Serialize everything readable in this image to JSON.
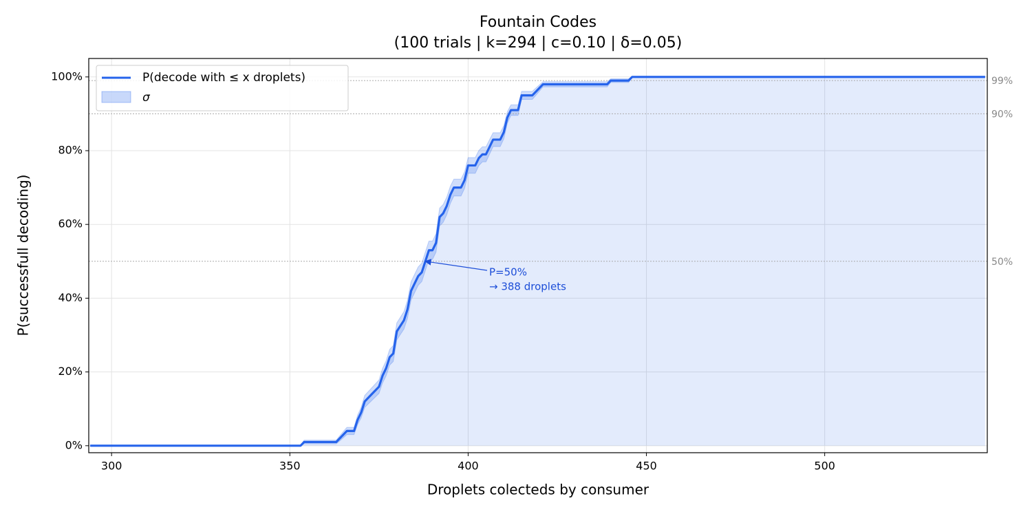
{
  "chart_data": {
    "type": "line",
    "title": [
      "Fountain Codes",
      "(100 trials | k=294 | c=0.10 | δ=0.05)"
    ],
    "xlabel": "Droplets colecteds by consumer",
    "ylabel": "P(successfull decoding)",
    "x": [
      294,
      353,
      354,
      363,
      364,
      365,
      366,
      368,
      369,
      370,
      371,
      373,
      375,
      376,
      377,
      378,
      379,
      380,
      382,
      383,
      384,
      385,
      386,
      387,
      388,
      389,
      390,
      391,
      392,
      393,
      394,
      395,
      396,
      398,
      399,
      400,
      402,
      403,
      404,
      405,
      406,
      407,
      409,
      410,
      411,
      412,
      414,
      415,
      418,
      419,
      420,
      421,
      439,
      440,
      445,
      446,
      545
    ],
    "series": [
      {
        "name": "P(decode with ≤ x droplets)",
        "color": "#2563eb",
        "values": [
          0,
          0,
          1,
          1,
          2,
          3,
          4,
          4,
          7,
          9,
          12,
          14,
          16,
          19,
          21,
          24,
          25,
          31,
          34,
          37,
          42,
          44,
          46,
          47,
          50,
          53,
          53,
          55,
          62,
          63,
          65,
          68,
          70,
          70,
          72,
          76,
          76,
          78,
          79,
          79,
          81,
          83,
          83,
          85,
          89,
          91,
          91,
          95,
          95,
          96,
          97,
          98,
          98,
          99,
          99,
          100,
          100
        ]
      }
    ],
    "band": {
      "name": "σ",
      "color": "#2563eb",
      "values": [
        0,
        0,
        0.5,
        0.5,
        0.7,
        0.85,
        0.98,
        0.98,
        1.28,
        1.43,
        1.62,
        1.73,
        1.83,
        1.96,
        2.04,
        2.14,
        2.17,
        2.31,
        2.37,
        2.41,
        2.47,
        2.48,
        2.49,
        2.5,
        2.5,
        2.5,
        2.5,
        2.49,
        2.43,
        2.41,
        2.38,
        2.33,
        2.29,
        2.29,
        2.24,
        2.14,
        2.14,
        2.07,
        2.04,
        2.04,
        1.96,
        1.88,
        1.88,
        1.79,
        1.56,
        1.43,
        1.43,
        1.09,
        1.09,
        0.98,
        0.85,
        0.7,
        0.7,
        0.5,
        0.5,
        0,
        0
      ]
    },
    "reference_lines": [
      {
        "value": 99,
        "label": "99%"
      },
      {
        "value": 90,
        "label": "90%"
      },
      {
        "value": 50,
        "label": "50%"
      }
    ],
    "annotation": {
      "x": 388,
      "y": 50,
      "text": [
        "P=50%",
        "→ 388 droplets"
      ],
      "color": "#1d4ed8"
    },
    "xlim": [
      293.6,
      545.6
    ],
    "ylim": [
      -1.9,
      105
    ],
    "xticks": [
      300,
      350,
      400,
      450,
      500
    ],
    "yticks": [
      {
        "value": 0,
        "label": "0%"
      },
      {
        "value": 20,
        "label": "20%"
      },
      {
        "value": 40,
        "label": "40%"
      },
      {
        "value": 60,
        "label": "60%"
      },
      {
        "value": 80,
        "label": "80%"
      },
      {
        "value": 100,
        "label": "100%"
      }
    ],
    "grid": true,
    "legend": "upper left"
  }
}
